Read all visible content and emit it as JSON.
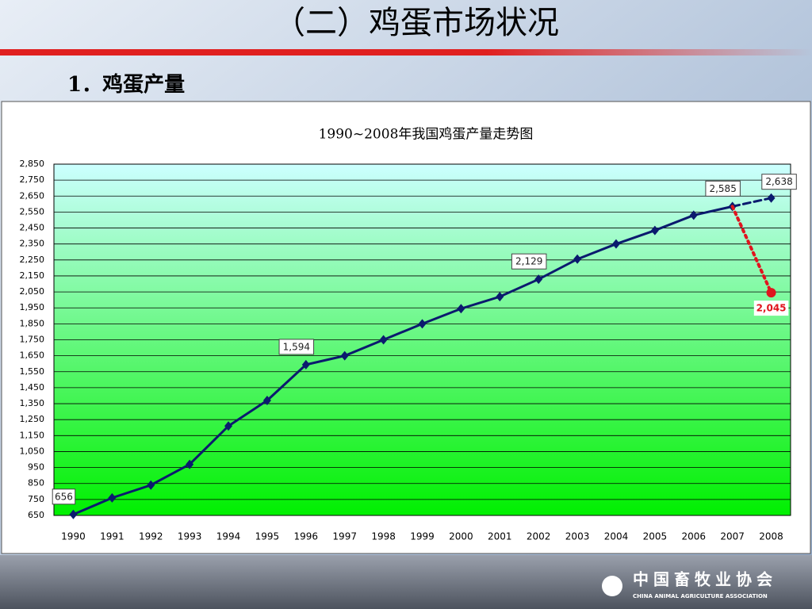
{
  "slide": {
    "title": "（二）鸡蛋市场状况",
    "subtitle": "1．鸡蛋产量"
  },
  "footer": {
    "name": "中国畜牧业协会",
    "name_en": "CHINA ANIMAL AGRICULTURE ASSOCIATION"
  },
  "chart_data": {
    "type": "line",
    "title": "1990~2008年我国鸡蛋产量走势图",
    "categories": [
      "1990",
      "1991",
      "1992",
      "1993",
      "1994",
      "1995",
      "1996",
      "1997",
      "1998",
      "1999",
      "2000",
      "2001",
      "2002",
      "2003",
      "2004",
      "2005",
      "2006",
      "2007",
      "2008"
    ],
    "series": [
      {
        "color": "#0b1a6e",
        "style": "solid",
        "marker": "diamond",
        "values": [
          656,
          760,
          840,
          970,
          1210,
          1370,
          1594,
          1650,
          1750,
          1850,
          1945,
          2020,
          2129,
          2255,
          2350,
          2435,
          2530,
          2585,
          null
        ],
        "value_labels": [
          "656",
          null,
          null,
          null,
          null,
          null,
          "1,594",
          null,
          null,
          null,
          null,
          null,
          "2,129",
          null,
          null,
          null,
          null,
          "2,585",
          null
        ]
      },
      {
        "color": "#0b1a6e",
        "style": "dashed",
        "marker": "diamond",
        "values": [
          null,
          null,
          null,
          null,
          null,
          null,
          null,
          null,
          null,
          null,
          null,
          null,
          null,
          null,
          null,
          null,
          null,
          2585,
          2638
        ],
        "value_labels": [
          null,
          null,
          null,
          null,
          null,
          null,
          null,
          null,
          null,
          null,
          null,
          null,
          null,
          null,
          null,
          null,
          null,
          null,
          "2,638"
        ]
      },
      {
        "color": "#e0141e",
        "style": "dotted",
        "marker": "circle",
        "values": [
          null,
          null,
          null,
          null,
          null,
          null,
          null,
          null,
          null,
          null,
          null,
          null,
          null,
          null,
          null,
          null,
          null,
          2585,
          2045
        ],
        "value_labels": [
          null,
          null,
          null,
          null,
          null,
          null,
          null,
          null,
          null,
          null,
          null,
          null,
          null,
          null,
          null,
          null,
          null,
          null,
          "2,045"
        ]
      }
    ],
    "ylim": [
      650,
      2850
    ],
    "yticks": [
      650,
      750,
      850,
      950,
      {
        "value": 1050,
        "label": "1,050"
      },
      {
        "value": 1150,
        "label": "1,150"
      },
      {
        "value": 1250,
        "label": "1,250"
      },
      {
        "value": 1350,
        "label": "1,350"
      },
      {
        "value": 1450,
        "label": "1,450"
      },
      {
        "value": 1550,
        "label": "1,550"
      },
      {
        "value": 1650,
        "label": "1,650"
      },
      {
        "value": 1750,
        "label": "1,750"
      },
      {
        "value": 1850,
        "label": "1,850"
      },
      {
        "value": 1950,
        "label": "1,950"
      },
      {
        "value": 2050,
        "label": "2,050"
      },
      {
        "value": 2150,
        "label": "2,150"
      },
      {
        "value": 2250,
        "label": "2,250"
      },
      {
        "value": 2350,
        "label": "2,350"
      },
      {
        "value": 2450,
        "label": "2,450"
      },
      {
        "value": 2550,
        "label": "2,550"
      },
      {
        "value": 2650,
        "label": "2,650"
      },
      {
        "value": 2750,
        "label": "2,750"
      },
      {
        "value": 2850,
        "label": "2,850"
      }
    ],
    "grid": true
  }
}
